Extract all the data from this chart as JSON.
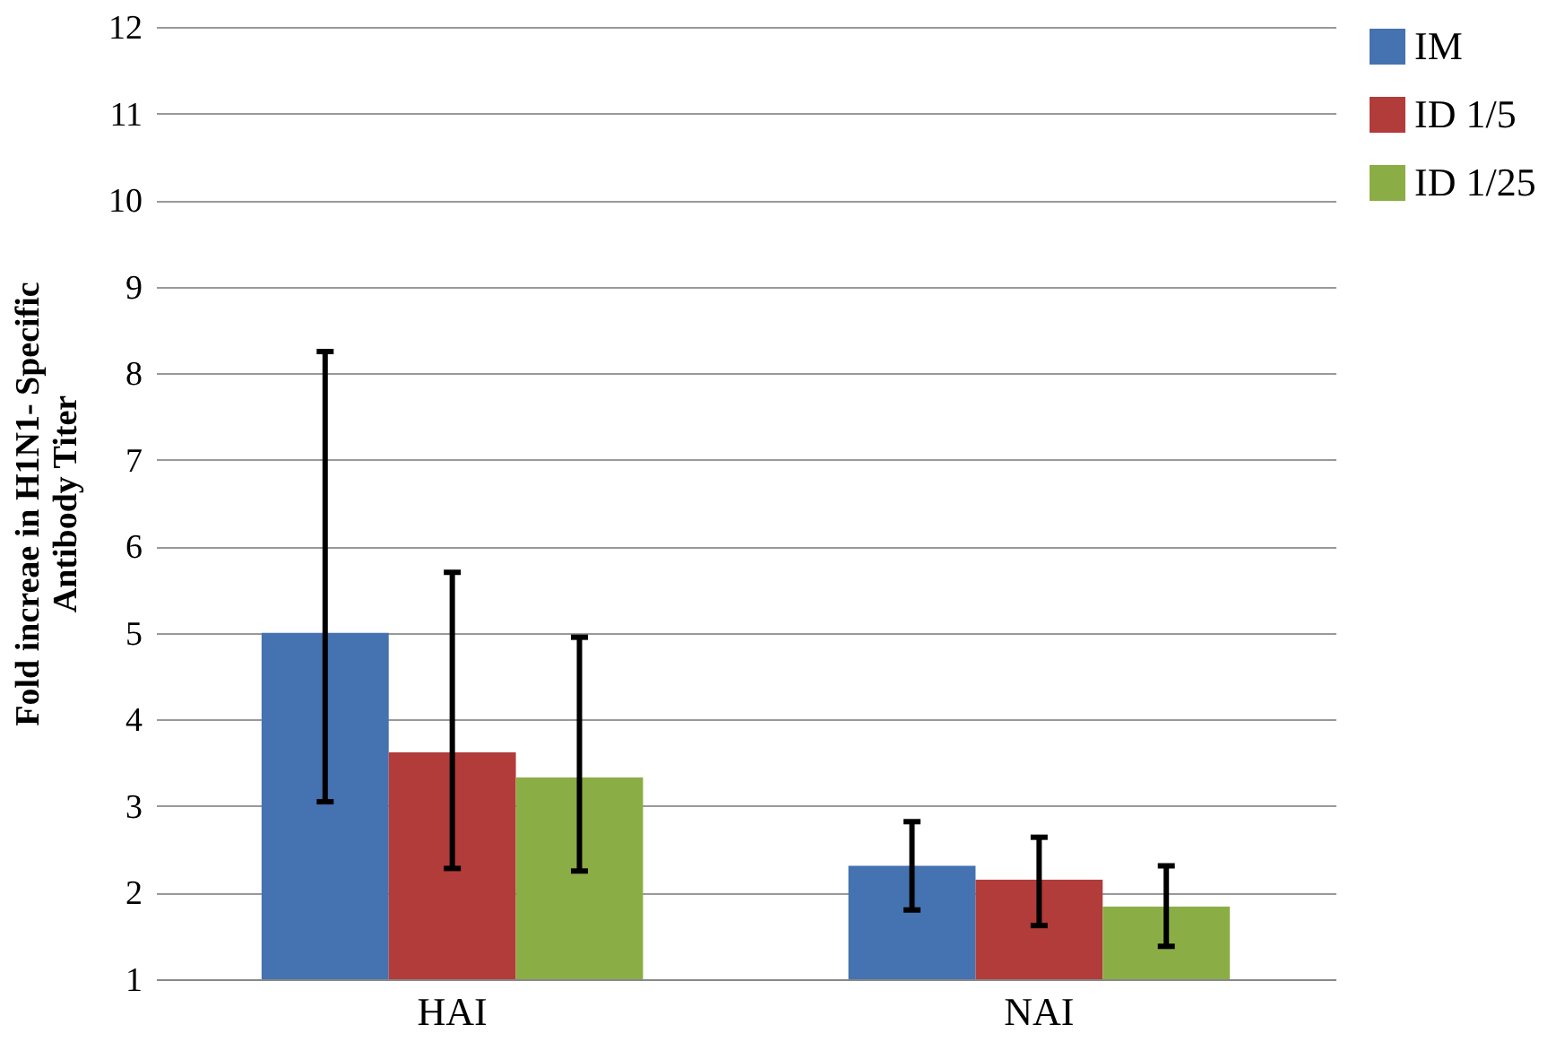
{
  "chart_data": {
    "type": "bar",
    "ylabel": "Fold increae in  H1N1- Specific\nAntibody Titer",
    "categories": [
      "HAI",
      "NAI"
    ],
    "series": [
      {
        "name": "IM",
        "color": "#4572b0",
        "values": [
          5.0,
          2.31
        ],
        "errors": [
          [
            3.05,
            8.25
          ],
          [
            1.8,
            2.82
          ]
        ]
      },
      {
        "name": "ID 1/5",
        "color": "#b23c3a",
        "values": [
          3.62,
          2.15
        ],
        "errors": [
          [
            2.28,
            5.7
          ],
          [
            1.62,
            2.64
          ]
        ]
      },
      {
        "name": "ID 1/25",
        "color": "#8bad45",
        "values": [
          3.33,
          1.84
        ],
        "errors": [
          [
            2.25,
            4.95
          ],
          [
            1.38,
            2.31
          ]
        ]
      }
    ],
    "ylim": [
      1,
      12
    ],
    "yticks": [
      1,
      2,
      3,
      4,
      5,
      6,
      7,
      8,
      9,
      10,
      11,
      12
    ],
    "grid": "y",
    "legend": "right"
  }
}
